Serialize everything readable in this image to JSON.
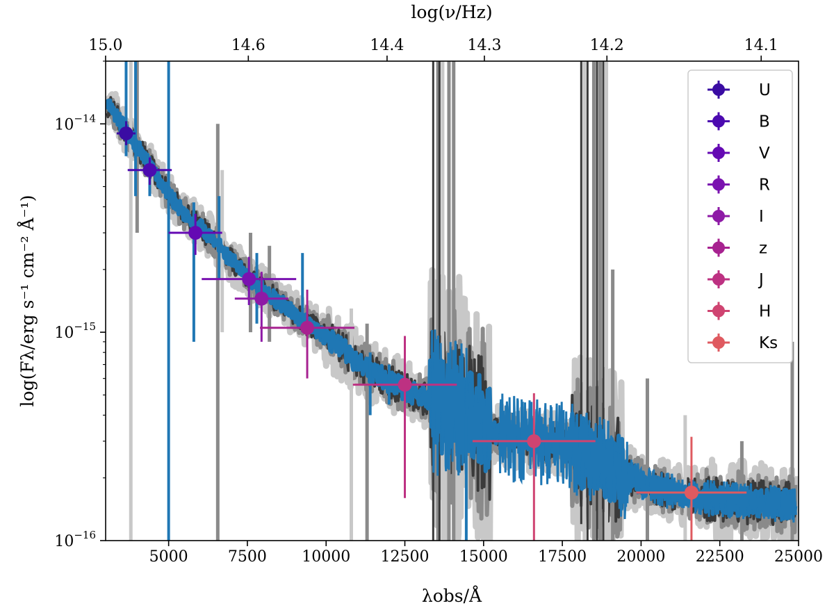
{
  "chart_data": {
    "type": "scatter",
    "title": "",
    "xlabel": "λobs/Å",
    "ylabel": "log(Fλ/erg s⁻¹ cm⁻² Å⁻¹)",
    "top_axis_label": "log(ν/Hz)",
    "x_scale": "linear",
    "y_scale": "log",
    "xlim": [
      3000,
      25000
    ],
    "ylim": [
      1e-16,
      2e-14
    ],
    "x_ticks": [
      5000,
      7500,
      10000,
      12500,
      15000,
      17500,
      20000,
      22500,
      25000
    ],
    "x_tick_labels": [
      "5000",
      "7500",
      "10000",
      "12500",
      "15000",
      "17500",
      "20000",
      "22500",
      "25000"
    ],
    "y_ticks": [
      1e-16,
      1e-15,
      1e-14
    ],
    "y_tick_labels": [
      {
        "base": "10",
        "exp": "−16"
      },
      {
        "base": "10",
        "exp": "−15"
      },
      {
        "base": "10",
        "exp": "−14"
      }
    ],
    "top_ticks": [
      15.0,
      14.6,
      14.4,
      14.3,
      14.2,
      14.1
    ],
    "top_tick_labels": [
      "15.0",
      "14.6",
      "14.4",
      "14.3",
      "14.2",
      "14.1"
    ],
    "grid": false,
    "legend_position": "top-right",
    "spectrum_color": "#1f77b4",
    "envelope_colors": [
      "#c8c8c8",
      "#8a8a8a",
      "#3a3a3a"
    ],
    "spectrum": {
      "x": [
        3050,
        3500,
        4000,
        4500,
        5000,
        5500,
        6000,
        6500,
        7000,
        7500,
        8000,
        8500,
        9000,
        9500,
        10000,
        10500,
        11000,
        11500,
        12000,
        12500,
        13000,
        13500,
        14000,
        14500,
        15000,
        15500,
        16000,
        16500,
        17000,
        17500,
        18000,
        18500,
        19000,
        19500,
        20000,
        20500,
        21000,
        21500,
        22000,
        22500,
        23000,
        23500,
        24000,
        24500,
        24900
      ],
      "y": [
        1.25e-14,
        1e-14,
        7.8e-15,
        6e-15,
        4.6e-15,
        3.7e-15,
        3.2e-15,
        2.7e-15,
        2.2e-15,
        1.85e-15,
        1.6e-15,
        1.4e-15,
        1.22e-15,
        1.08e-15,
        9.5e-16,
        8.3e-16,
        7.2e-16,
        6.4e-16,
        5.8e-16,
        5.3e-16,
        4.9e-16,
        4.6e-16,
        4.3e-16,
        3.9e-16,
        3.5e-16,
        3.25e-16,
        3.1e-16,
        3e-16,
        2.95e-16,
        2.85e-16,
        2.7e-16,
        2.5e-16,
        2.25e-16,
        2.05e-16,
        1.9e-16,
        1.78e-16,
        1.7e-16,
        1.65e-16,
        1.6e-16,
        1.57e-16,
        1.55e-16,
        1.53e-16,
        1.52e-16,
        1.5e-16,
        1.5e-16
      ]
    },
    "series": [
      {
        "name": "U",
        "color": "#3a0ca3",
        "x": 3650,
        "y": 9e-15,
        "xerr": 300,
        "yerr": [
          7.9e-15,
          1.03e-14
        ]
      },
      {
        "name": "B",
        "color": "#4c0ab0",
        "x": 4400,
        "y": 6e-15,
        "xerr": 700,
        "yerr": [
          5.1e-15,
          6.9e-15
        ]
      },
      {
        "name": "V",
        "color": "#6409b3",
        "x": 5850,
        "y": 3e-15,
        "xerr": 850,
        "yerr": [
          2.35e-15,
          3.7e-15
        ]
      },
      {
        "name": "R",
        "color": "#7a12b0",
        "x": 7550,
        "y": 1.8e-15,
        "xerr": 1500,
        "yerr": [
          1.35e-15,
          2.3e-15
        ]
      },
      {
        "name": "I",
        "color": "#8e1aa6",
        "x": 7950,
        "y": 1.45e-15,
        "xerr": 850,
        "yerr": [
          9e-16,
          1.95e-15
        ]
      },
      {
        "name": "z",
        "color": "#a72290",
        "x": 9400,
        "y": 1.05e-15,
        "xerr": 1500,
        "yerr": [
          6e-16,
          1.6e-15
        ]
      },
      {
        "name": "J",
        "color": "#bd3182",
        "x": 12500,
        "y": 5.6e-16,
        "xerr": 1650,
        "yerr": [
          1.6e-16,
          9.6e-16
        ]
      },
      {
        "name": "H",
        "color": "#cf4471",
        "x": 16600,
        "y": 3e-16,
        "xerr": 1950,
        "yerr": [
          1e-16,
          5.1e-16
        ]
      },
      {
        "name": "Ks",
        "color": "#df5a60",
        "x": 21600,
        "y": 1.7e-16,
        "xerr": 1750,
        "yerr": [
          1e-16,
          3.15e-16
        ]
      }
    ]
  }
}
